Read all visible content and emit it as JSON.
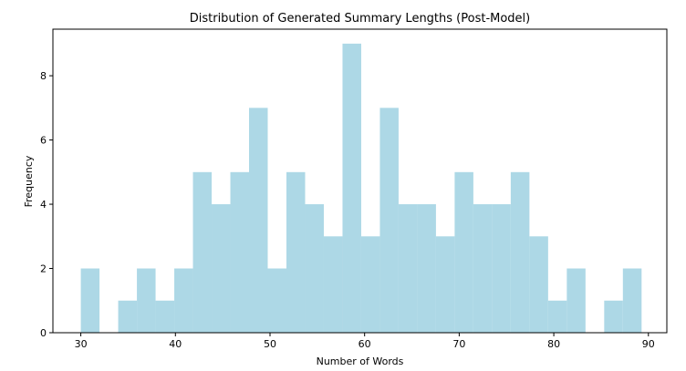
{
  "chart_data": {
    "type": "bar",
    "title": "Distribution of Generated Summary Lengths (Post-Model)",
    "xlabel": "Number of Words",
    "ylabel": "Frequency",
    "bin_width": 1.976,
    "bins": [
      {
        "start": 30.0,
        "count": 2
      },
      {
        "start": 31.976,
        "count": 0
      },
      {
        "start": 33.952,
        "count": 1
      },
      {
        "start": 35.928,
        "count": 2
      },
      {
        "start": 37.904,
        "count": 1
      },
      {
        "start": 39.88,
        "count": 2
      },
      {
        "start": 41.856,
        "count": 5
      },
      {
        "start": 43.832,
        "count": 4
      },
      {
        "start": 45.808,
        "count": 5
      },
      {
        "start": 47.784,
        "count": 7
      },
      {
        "start": 49.76,
        "count": 2
      },
      {
        "start": 51.736,
        "count": 5
      },
      {
        "start": 53.712,
        "count": 4
      },
      {
        "start": 55.688,
        "count": 3
      },
      {
        "start": 57.664,
        "count": 9
      },
      {
        "start": 59.64,
        "count": 3
      },
      {
        "start": 61.616,
        "count": 7
      },
      {
        "start": 63.592,
        "count": 4
      },
      {
        "start": 65.568,
        "count": 4
      },
      {
        "start": 67.544,
        "count": 3
      },
      {
        "start": 69.52,
        "count": 5
      },
      {
        "start": 71.496,
        "count": 4
      },
      {
        "start": 73.472,
        "count": 4
      },
      {
        "start": 75.448,
        "count": 5
      },
      {
        "start": 77.424,
        "count": 3
      },
      {
        "start": 79.4,
        "count": 1
      },
      {
        "start": 81.376,
        "count": 2
      },
      {
        "start": 83.352,
        "count": 0
      },
      {
        "start": 85.328,
        "count": 1
      },
      {
        "start": 87.304,
        "count": 2
      }
    ],
    "xlim": [
      27.05,
      91.95
    ],
    "ylim": [
      0,
      9.45
    ],
    "xticks": [
      30,
      40,
      50,
      60,
      70,
      80,
      90
    ],
    "yticks": [
      0,
      2,
      4,
      6,
      8
    ],
    "bar_color": "#add8e6",
    "grid": false,
    "legend": false
  }
}
